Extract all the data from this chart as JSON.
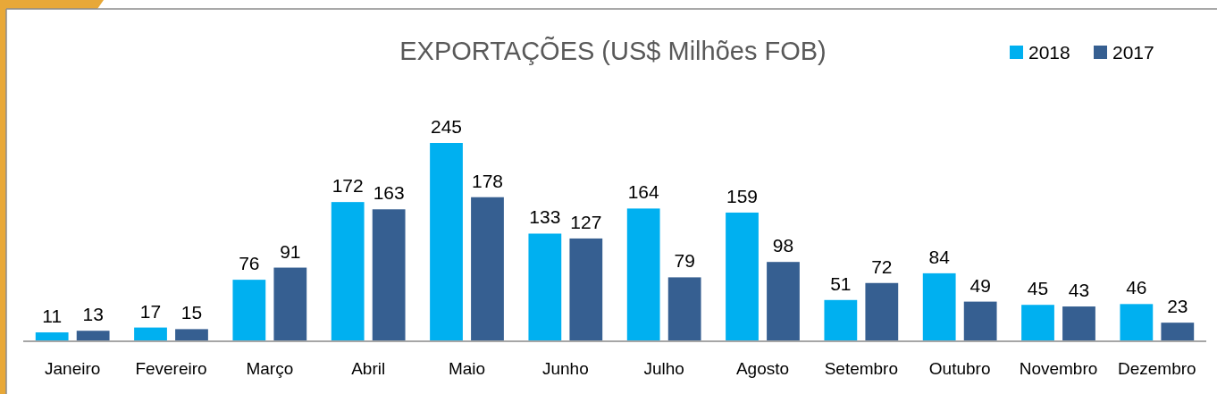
{
  "chart_data": {
    "type": "bar",
    "title": "EXPORTAÇÕES (US$ Milhões FOB)",
    "categories": [
      "Janeiro",
      "Fevereiro",
      "Março",
      "Abril",
      "Maio",
      "Junho",
      "Julho",
      "Agosto",
      "Setembro",
      "Outubro",
      "Novembro",
      "Dezembro"
    ],
    "series": [
      {
        "name": "2018",
        "color": "#00b0f0",
        "values": [
          11,
          17,
          76,
          172,
          245,
          133,
          164,
          159,
          51,
          84,
          45,
          46
        ]
      },
      {
        "name": "2017",
        "color": "#365f91",
        "values": [
          13,
          15,
          91,
          163,
          178,
          127,
          79,
          98,
          72,
          49,
          43,
          23
        ]
      }
    ],
    "data_labels": true,
    "legend": "top right"
  }
}
